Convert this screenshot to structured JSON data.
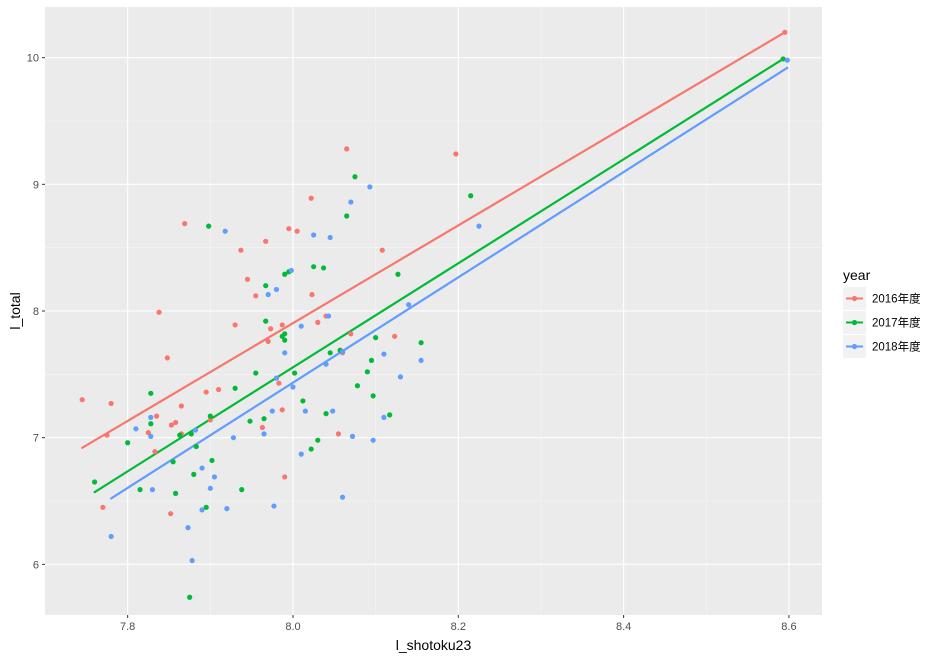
{
  "chart_data": {
    "type": "scatter",
    "xlabel": "l_shotoku23",
    "ylabel": "l_total",
    "xlim": [
      7.7,
      8.64
    ],
    "ylim": [
      5.6,
      10.4
    ],
    "x_ticks": [
      7.8,
      8.0,
      8.2,
      8.4,
      8.6
    ],
    "y_ticks": [
      6,
      7,
      8,
      9,
      10
    ],
    "grid": true,
    "legend_placement": "right",
    "legend": {
      "title": "year",
      "entries": [
        "2016年度",
        "2017年度",
        "2018年度"
      ]
    },
    "series": [
      {
        "name": "2016年度",
        "color": "#f8766d",
        "trend": [
          [
            7.745,
            6.92
          ],
          [
            8.595,
            10.2
          ]
        ],
        "points": [
          [
            7.745,
            7.3
          ],
          [
            7.77,
            6.45
          ],
          [
            7.775,
            7.02
          ],
          [
            7.78,
            7.27
          ],
          [
            7.825,
            7.04
          ],
          [
            7.835,
            7.17
          ],
          [
            7.838,
            7.99
          ],
          [
            7.833,
            6.89
          ],
          [
            7.848,
            7.63
          ],
          [
            7.853,
            7.1
          ],
          [
            7.858,
            7.12
          ],
          [
            7.852,
            6.4
          ],
          [
            7.865,
            7.25
          ],
          [
            7.865,
            7.03
          ],
          [
            7.869,
            8.69
          ],
          [
            7.895,
            7.36
          ],
          [
            7.9,
            7.14
          ],
          [
            7.91,
            7.38
          ],
          [
            7.93,
            7.89
          ],
          [
            7.937,
            8.48
          ],
          [
            7.945,
            8.25
          ],
          [
            7.955,
            8.12
          ],
          [
            7.963,
            7.08
          ],
          [
            7.967,
            8.55
          ],
          [
            7.97,
            7.76
          ],
          [
            7.973,
            7.86
          ],
          [
            7.983,
            7.43
          ],
          [
            7.987,
            7.22
          ],
          [
            7.987,
            7.89
          ],
          [
            7.99,
            6.69
          ],
          [
            7.995,
            8.65
          ],
          [
            8.005,
            8.63
          ],
          [
            8.022,
            8.89
          ],
          [
            8.023,
            8.13
          ],
          [
            8.03,
            7.91
          ],
          [
            8.04,
            7.96
          ],
          [
            8.055,
            7.03
          ],
          [
            8.06,
            7.67
          ],
          [
            8.065,
            9.28
          ],
          [
            8.07,
            7.82
          ],
          [
            8.108,
            8.48
          ],
          [
            8.123,
            7.8
          ],
          [
            8.197,
            9.24
          ],
          [
            8.595,
            10.2
          ]
        ]
      },
      {
        "name": "2017年度",
        "color": "#00ba38",
        "trend": [
          [
            7.76,
            6.57
          ],
          [
            8.593,
            9.99
          ]
        ],
        "points": [
          [
            7.76,
            6.65
          ],
          [
            7.8,
            6.96
          ],
          [
            7.815,
            6.59
          ],
          [
            7.828,
            7.35
          ],
          [
            7.828,
            7.11
          ],
          [
            7.855,
            6.81
          ],
          [
            7.858,
            6.56
          ],
          [
            7.863,
            7.02
          ],
          [
            7.875,
            5.74
          ],
          [
            7.877,
            7.03
          ],
          [
            7.88,
            6.71
          ],
          [
            7.883,
            6.93
          ],
          [
            7.895,
            6.45
          ],
          [
            7.898,
            8.67
          ],
          [
            7.9,
            7.17
          ],
          [
            7.902,
            6.82
          ],
          [
            7.93,
            7.39
          ],
          [
            7.938,
            6.59
          ],
          [
            7.948,
            7.13
          ],
          [
            7.955,
            7.51
          ],
          [
            7.965,
            7.15
          ],
          [
            7.967,
            7.92
          ],
          [
            7.967,
            8.2
          ],
          [
            7.987,
            7.8
          ],
          [
            7.99,
            7.77
          ],
          [
            7.99,
            7.82
          ],
          [
            7.99,
            8.29
          ],
          [
            7.995,
            8.31
          ],
          [
            8.002,
            7.51
          ],
          [
            8.012,
            7.29
          ],
          [
            8.022,
            6.91
          ],
          [
            8.025,
            8.35
          ],
          [
            8.03,
            6.98
          ],
          [
            8.037,
            8.34
          ],
          [
            8.04,
            7.19
          ],
          [
            8.045,
            7.67
          ],
          [
            8.057,
            7.69
          ],
          [
            8.065,
            8.75
          ],
          [
            8.075,
            9.06
          ],
          [
            8.078,
            7.41
          ],
          [
            8.09,
            7.52
          ],
          [
            8.095,
            7.61
          ],
          [
            8.097,
            7.33
          ],
          [
            8.1,
            7.79
          ],
          [
            8.117,
            7.18
          ],
          [
            8.127,
            8.29
          ],
          [
            8.155,
            7.75
          ],
          [
            8.215,
            8.91
          ],
          [
            8.593,
            9.99
          ]
        ]
      },
      {
        "name": "2018年度",
        "color": "#619cff",
        "trend": [
          [
            7.78,
            6.52
          ],
          [
            8.598,
            9.92
          ]
        ],
        "points": [
          [
            7.78,
            6.22
          ],
          [
            7.81,
            7.07
          ],
          [
            7.828,
            7.16
          ],
          [
            7.83,
            6.59
          ],
          [
            7.828,
            7.01
          ],
          [
            7.873,
            6.29
          ],
          [
            7.878,
            6.03
          ],
          [
            7.882,
            7.06
          ],
          [
            7.89,
            6.76
          ],
          [
            7.89,
            6.43
          ],
          [
            7.9,
            6.6
          ],
          [
            7.905,
            6.69
          ],
          [
            7.918,
            8.63
          ],
          [
            7.92,
            6.44
          ],
          [
            7.928,
            7.0
          ],
          [
            7.965,
            7.03
          ],
          [
            7.97,
            8.13
          ],
          [
            7.975,
            7.21
          ],
          [
            7.977,
            6.46
          ],
          [
            7.98,
            8.17
          ],
          [
            7.98,
            7.47
          ],
          [
            7.99,
            7.67
          ],
          [
            7.998,
            8.32
          ],
          [
            8.0,
            7.4
          ],
          [
            8.01,
            7.88
          ],
          [
            8.01,
            6.87
          ],
          [
            8.015,
            7.21
          ],
          [
            8.025,
            8.6
          ],
          [
            8.04,
            7.58
          ],
          [
            8.043,
            7.96
          ],
          [
            8.045,
            8.58
          ],
          [
            8.048,
            7.21
          ],
          [
            8.06,
            6.53
          ],
          [
            8.06,
            7.68
          ],
          [
            8.07,
            8.86
          ],
          [
            8.072,
            7.01
          ],
          [
            8.093,
            8.98
          ],
          [
            8.097,
            6.98
          ],
          [
            8.11,
            7.16
          ],
          [
            8.11,
            7.66
          ],
          [
            8.13,
            7.48
          ],
          [
            8.14,
            8.05
          ],
          [
            8.155,
            7.61
          ],
          [
            8.225,
            8.67
          ],
          [
            8.598,
            9.98
          ]
        ]
      }
    ]
  }
}
